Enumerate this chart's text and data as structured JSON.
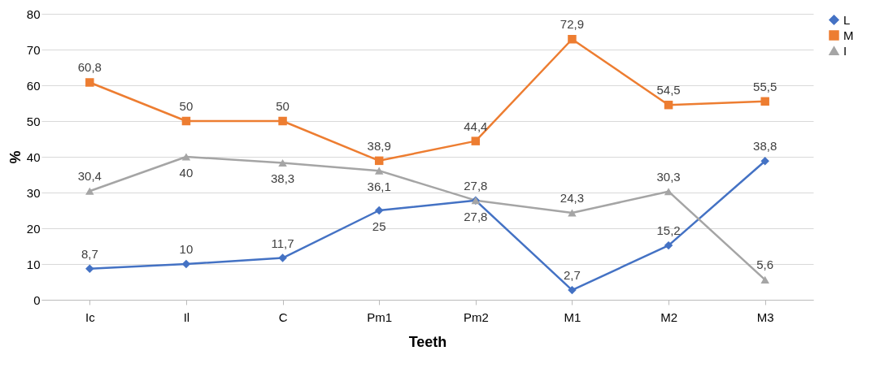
{
  "chart_data": {
    "type": "line",
    "xlabel": "Teeth",
    "ylabel": "%",
    "categories": [
      "Ic",
      "Il",
      "C",
      "Pm1",
      "Pm2",
      "M1",
      "M2",
      "M3"
    ],
    "ylim": [
      0,
      80
    ],
    "yticks": [
      0,
      10,
      20,
      30,
      40,
      50,
      60,
      70,
      80
    ],
    "grid": "y",
    "legend": "right",
    "series": [
      {
        "name": "L",
        "color": "#4472c4",
        "marker": "diamond",
        "values": [
          8.7,
          10,
          11.7,
          25,
          27.8,
          2.7,
          15.2,
          38.8
        ],
        "value_labels": [
          "8,7",
          "10",
          "11,7",
          "25",
          "27,8",
          "2,7",
          "15,2",
          "38,8"
        ]
      },
      {
        "name": "M",
        "color": "#ed7d31",
        "marker": "square",
        "values": [
          60.8,
          50,
          50,
          38.9,
          44.4,
          72.9,
          54.5,
          55.5
        ],
        "value_labels": [
          "60,8",
          "50",
          "50",
          "38,9",
          "44,4",
          "72,9",
          "54,5",
          "55,5"
        ]
      },
      {
        "name": "I",
        "color": "#a5a5a5",
        "marker": "triangle",
        "values": [
          30.4,
          40,
          38.3,
          36.1,
          27.8,
          24.3,
          30.3,
          5.6
        ],
        "value_labels": [
          "30,4",
          "40",
          "38,3",
          "36,1",
          "27,8",
          "24,3",
          "30,3",
          "5,6"
        ]
      }
    ]
  }
}
